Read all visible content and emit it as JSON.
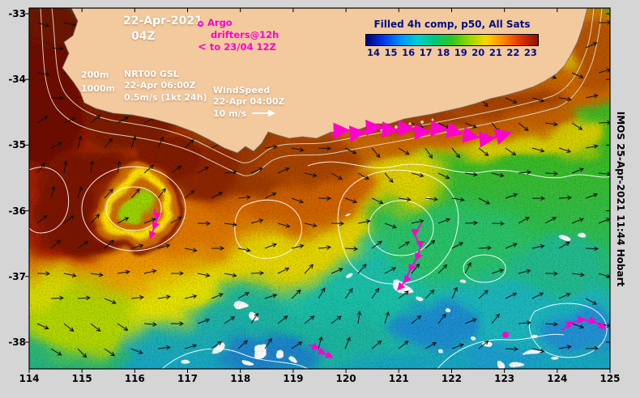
{
  "header": {
    "datetime": [
      "22-Apr-2021",
      "04Z"
    ]
  },
  "legend": {
    "argo_label": "Argo",
    "drifters_line1": "drifters@12h",
    "drifters_line2": "to 23/04 12Z"
  },
  "info": {
    "contour_labels": [
      "200m",
      "1000m"
    ],
    "gsl_lines": [
      "NRT00 GSL",
      "22-Apr 06:00Z",
      "0.5m/s (1kt 24h)"
    ],
    "wind_lines": [
      "WindSpeed",
      "22-Apr 04:00Z",
      "10 m/s"
    ]
  },
  "colorbar": {
    "title": "Filled 4h comp, p50, All Sats",
    "ticks": [
      14,
      15,
      16,
      17,
      18,
      19,
      20,
      21,
      22,
      23
    ],
    "colors": [
      "#000082",
      "#0037e8",
      "#0090ff",
      "#00cfd0",
      "#00c878",
      "#2ec81e",
      "#97d900",
      "#ffd300",
      "#ff8400",
      "#e03000",
      "#8c1400"
    ],
    "text_color": "#001080"
  },
  "axes": {
    "x_ticks": [
      "114",
      "115",
      "116",
      "117",
      "118",
      "119",
      "120",
      "121",
      "122",
      "123",
      "124",
      "125"
    ],
    "y_ticks": [
      "-33",
      "-34",
      "-35",
      "-36",
      "-37",
      "-38"
    ]
  },
  "credit": "IMOS 25-Apr-2021 11:44 Hobart",
  "overlays": {
    "drifter_color": "#ff00cf",
    "tracks": [
      {
        "size": "big",
        "points": [
          [
            406,
            166
          ],
          [
            426,
            161
          ],
          [
            446,
            164
          ],
          [
            466,
            157
          ],
          [
            486,
            161
          ],
          [
            506,
            159
          ],
          [
            526,
            163
          ],
          [
            546,
            159
          ],
          [
            566,
            164
          ],
          [
            586,
            169
          ],
          [
            606,
            171
          ],
          [
            626,
            165
          ]
        ]
      },
      {
        "size": "small",
        "points": [
          [
            520,
            276
          ],
          [
            512,
            290
          ],
          [
            519,
            305
          ],
          [
            514,
            320
          ],
          [
            506,
            334
          ],
          [
            500,
            348
          ],
          [
            492,
            357
          ]
        ]
      },
      {
        "size": "small",
        "points": [
          [
            381,
            426
          ],
          [
            392,
            431
          ],
          [
            400,
            437
          ],
          [
            409,
            441
          ]
        ]
      },
      {
        "size": "small",
        "points": [
          [
            694,
            408
          ],
          [
            706,
            399
          ],
          [
            720,
            395
          ],
          [
            734,
            398
          ],
          [
            746,
            405
          ]
        ]
      },
      {
        "size": "small",
        "points": [
          [
            190,
            258
          ],
          [
            194,
            270
          ],
          [
            190,
            282
          ],
          [
            186,
            293
          ]
        ]
      }
    ],
    "argo_floats": [
      [
        624,
        414
      ]
    ]
  }
}
